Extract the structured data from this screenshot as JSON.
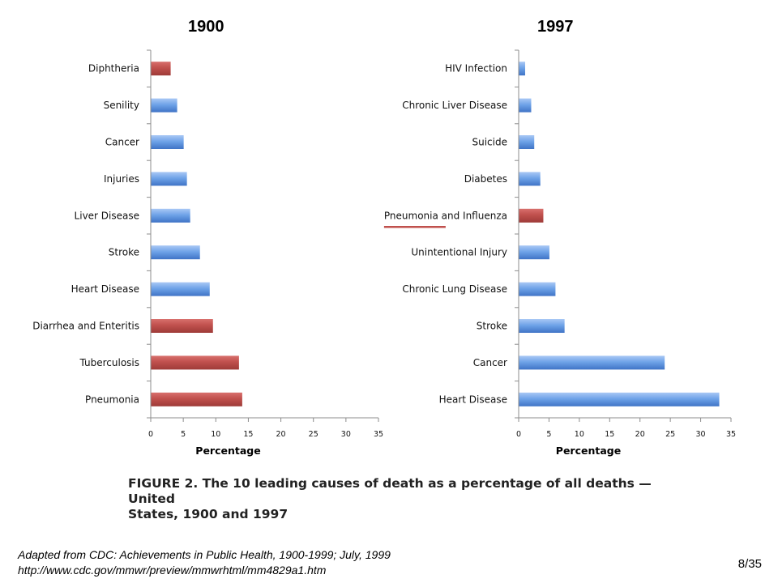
{
  "colors": {
    "blue": "#6fa3e8",
    "red": "#c0504d",
    "axis": "#8c8c8c",
    "underline": "#c0504d"
  },
  "chart_data": [
    {
      "type": "bar",
      "title": "1900",
      "xlabel": "Percentage",
      "xlim": [
        0,
        35
      ],
      "xticks": [
        0,
        5,
        10,
        15,
        20,
        25,
        30,
        35
      ],
      "categories": [
        "Diphtheria",
        "Senility",
        "Cancer",
        "Injuries",
        "Liver Disease",
        "Stroke",
        "Heart Disease",
        "Diarrhea and Enteritis",
        "Tuberculosis",
        "Pneumonia"
      ],
      "values": [
        3.0,
        4.0,
        5.0,
        5.5,
        6.0,
        7.5,
        9.0,
        9.5,
        13.5,
        14.0
      ],
      "bar_colors": [
        "red",
        "blue",
        "blue",
        "blue",
        "blue",
        "blue",
        "blue",
        "red",
        "red",
        "red"
      ]
    },
    {
      "type": "bar",
      "title": "1997",
      "xlabel": "Percentage",
      "xlim": [
        0,
        35
      ],
      "xticks": [
        0,
        5,
        10,
        15,
        20,
        25,
        30,
        35
      ],
      "categories": [
        "HIV Infection",
        "Chronic Liver Disease",
        "Suicide",
        "Diabetes",
        "Pneumonia and Influenza",
        "Unintentional Injury",
        "Chronic Lung Disease",
        "Stroke",
        "Cancer",
        "Heart Disease"
      ],
      "values": [
        1.0,
        2.0,
        2.5,
        3.5,
        4.0,
        5.0,
        6.0,
        7.5,
        24.0,
        33.0
      ],
      "bar_colors": [
        "blue",
        "blue",
        "blue",
        "blue",
        "red",
        "blue",
        "blue",
        "blue",
        "blue",
        "blue"
      ],
      "underlined_category": "Pneumonia and Influenza"
    }
  ],
  "caption": {
    "line1": "FIGURE 2. The 10 leading causes of death as a percentage of all deaths — United",
    "line2": "States, 1900 and 1997"
  },
  "source": {
    "line1": "Adapted from CDC: Achievements in Public Health, 1900-1999; July, 1999",
    "line2": "http://www.cdc.gov/mmwr/preview/mmwrhtml/mm4829a1.htm"
  },
  "page_number": "8/35"
}
